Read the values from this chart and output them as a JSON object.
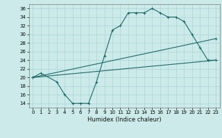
{
  "xlabel": "Humidex (Indice chaleur)",
  "bg_color": "#cceaea",
  "grid_color": "#aad4d4",
  "line_color": "#1a6666",
  "xlim": [
    -0.5,
    23.5
  ],
  "ylim": [
    13,
    37
  ],
  "xticks": [
    0,
    1,
    2,
    3,
    4,
    5,
    6,
    7,
    8,
    9,
    10,
    11,
    12,
    13,
    14,
    15,
    16,
    17,
    18,
    19,
    20,
    21,
    22,
    23
  ],
  "yticks": [
    14,
    16,
    18,
    20,
    22,
    24,
    26,
    28,
    30,
    32,
    34,
    36
  ],
  "line1_x": [
    0,
    1,
    3,
    4,
    5,
    6,
    7,
    8,
    9,
    10,
    11,
    12,
    13,
    14,
    15,
    16,
    17,
    18,
    19,
    20,
    21,
    22,
    23
  ],
  "line1_y": [
    20,
    21,
    19,
    16,
    14,
    14,
    14,
    19,
    25,
    31,
    32,
    35,
    35,
    35,
    36,
    35,
    34,
    34,
    33,
    30,
    27,
    24,
    24
  ],
  "line2_x": [
    0,
    23
  ],
  "line2_y": [
    20,
    24
  ],
  "line3_x": [
    0,
    23
  ],
  "line3_y": [
    20,
    29
  ],
  "xlabel_fontsize": 6,
  "tick_fontsize": 5
}
